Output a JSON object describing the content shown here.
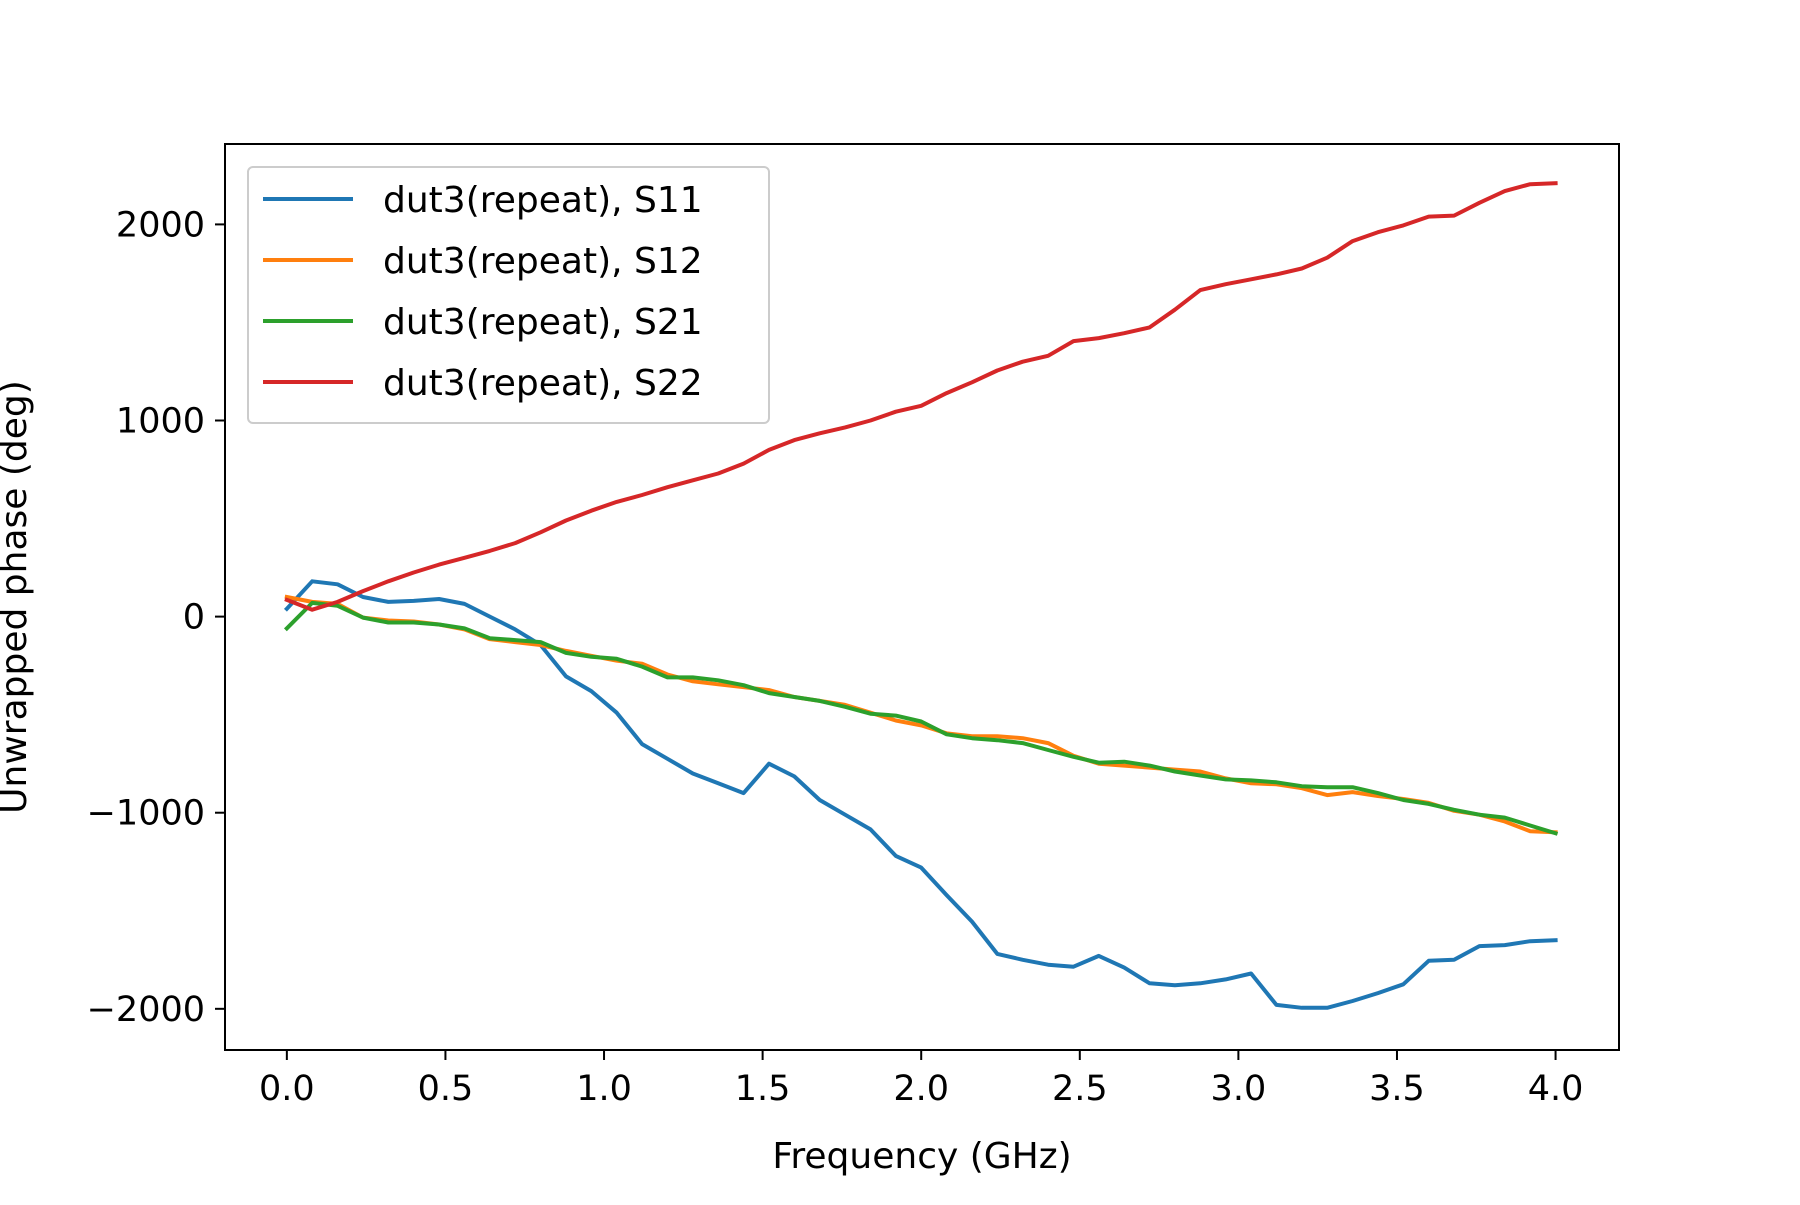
{
  "chart_data": {
    "type": "line",
    "title": "",
    "xlabel": "Frequency (GHz)",
    "ylabel": "Unwrapped phase (deg)",
    "xlim": [
      -0.195,
      4.2
    ],
    "ylim": [
      -2210,
      2410
    ],
    "xticks": [
      {
        "value": 0.0,
        "label": "0.0"
      },
      {
        "value": 0.5,
        "label": "0.5"
      },
      {
        "value": 1.0,
        "label": "1.0"
      },
      {
        "value": 1.5,
        "label": "1.5"
      },
      {
        "value": 2.0,
        "label": "2.0"
      },
      {
        "value": 2.5,
        "label": "2.5"
      },
      {
        "value": 3.0,
        "label": "3.0"
      },
      {
        "value": 3.5,
        "label": "3.5"
      },
      {
        "value": 4.0,
        "label": "4.0"
      }
    ],
    "yticks": [
      {
        "value": 2000,
        "label": "2000"
      },
      {
        "value": 1000,
        "label": "1000"
      },
      {
        "value": 0,
        "label": "0"
      },
      {
        "value": -1000,
        "label": "−1000"
      },
      {
        "value": -2000,
        "label": "−2000"
      }
    ],
    "grid": false,
    "legend_position": "upper-left",
    "x": [
      0.0,
      0.08,
      0.16,
      0.24,
      0.32,
      0.4,
      0.48,
      0.56,
      0.64,
      0.72,
      0.8,
      0.88,
      0.96,
      1.04,
      1.12,
      1.2,
      1.28,
      1.36,
      1.44,
      1.52,
      1.6,
      1.68,
      1.76,
      1.84,
      1.92,
      2.0,
      2.08,
      2.16,
      2.24,
      2.32,
      2.4,
      2.48,
      2.56,
      2.64,
      2.72,
      2.8,
      2.88,
      2.96,
      3.04,
      3.12,
      3.2,
      3.28,
      3.36,
      3.44,
      3.52,
      3.6,
      3.68,
      3.76,
      3.84,
      3.92,
      4.0
    ],
    "series": [
      {
        "name": "dut3(repeat), S11",
        "color": "#1f77b4",
        "values": [
          40,
          180,
          165,
          100,
          75,
          80,
          90,
          65,
          0,
          -65,
          -145,
          -305,
          -380,
          -490,
          -650,
          -725,
          -800,
          -850,
          -900,
          -750,
          -815,
          -935,
          -1010,
          -1085,
          -1220,
          -1280,
          -1420,
          -1555,
          -1720,
          -1750,
          -1775,
          -1785,
          -1730,
          -1790,
          -1870,
          -1880,
          -1870,
          -1850,
          -1820,
          -1980,
          -1995,
          -1995,
          -1960,
          -1920,
          -1875,
          -1755,
          -1750,
          -1680,
          -1675,
          -1655,
          -1650
        ]
      },
      {
        "name": "dut3(repeat), S12",
        "color": "#ff7f0e",
        "values": [
          100,
          75,
          65,
          -5,
          -20,
          -25,
          -40,
          -65,
          -115,
          -130,
          -145,
          -175,
          -200,
          -225,
          -240,
          -295,
          -330,
          -345,
          -360,
          -375,
          -410,
          -430,
          -450,
          -490,
          -530,
          -555,
          -595,
          -610,
          -610,
          -620,
          -645,
          -710,
          -750,
          -760,
          -770,
          -780,
          -790,
          -825,
          -850,
          -855,
          -875,
          -910,
          -895,
          -915,
          -930,
          -950,
          -990,
          -1010,
          -1045,
          -1095,
          -1100
        ]
      },
      {
        "name": "dut3(repeat), S21",
        "color": "#2ca02c",
        "values": [
          -60,
          70,
          55,
          -5,
          -30,
          -30,
          -40,
          -60,
          -110,
          -120,
          -130,
          -185,
          -205,
          -215,
          -255,
          -310,
          -310,
          -325,
          -350,
          -390,
          -410,
          -430,
          -460,
          -495,
          -505,
          -535,
          -600,
          -620,
          -630,
          -645,
          -680,
          -715,
          -745,
          -740,
          -760,
          -790,
          -810,
          -830,
          -835,
          -845,
          -865,
          -870,
          -870,
          -900,
          -935,
          -955,
          -985,
          -1010,
          -1025,
          -1065,
          -1105
        ]
      },
      {
        "name": "dut3(repeat), S22",
        "color": "#d62728",
        "values": [
          85,
          35,
          75,
          130,
          180,
          225,
          265,
          300,
          335,
          375,
          430,
          490,
          540,
          585,
          620,
          660,
          695,
          730,
          780,
          850,
          900,
          935,
          965,
          1000,
          1045,
          1075,
          1140,
          1195,
          1255,
          1300,
          1330,
          1405,
          1420,
          1445,
          1475,
          1565,
          1665,
          1695,
          1720,
          1745,
          1775,
          1830,
          1915,
          1960,
          1995,
          2040,
          2045,
          2110,
          2170,
          2205,
          2210
        ]
      }
    ]
  }
}
